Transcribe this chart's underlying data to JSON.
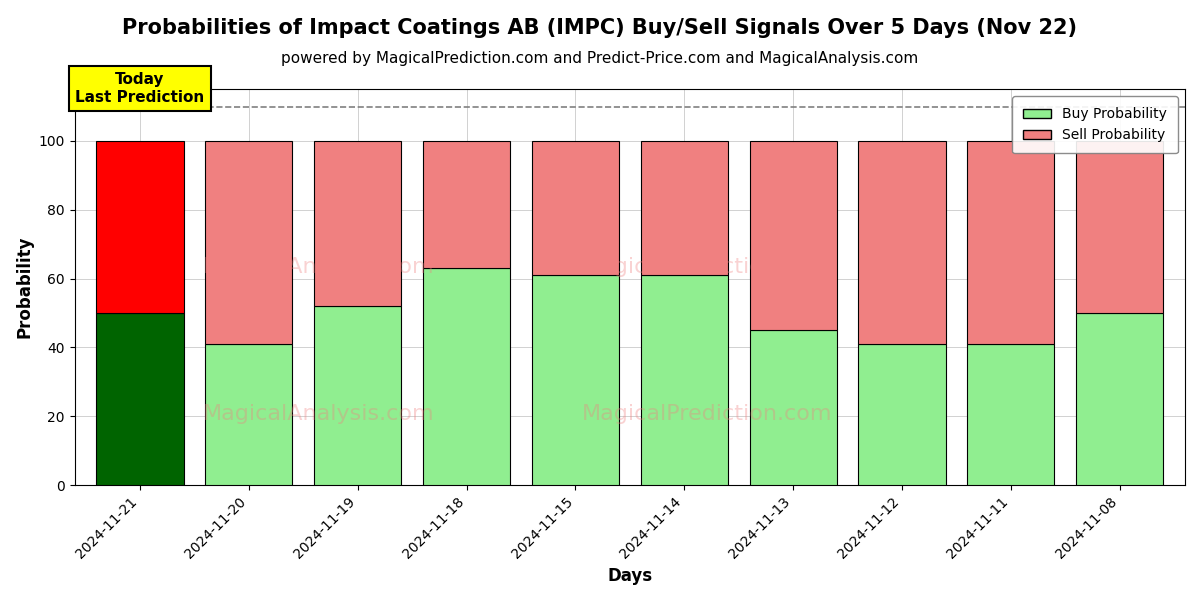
{
  "title": "Probabilities of Impact Coatings AB (IMPC) Buy/Sell Signals Over 5 Days (Nov 22)",
  "subtitle": "powered by MagicalPrediction.com and Predict-Price.com and MagicalAnalysis.com",
  "xlabel": "Days",
  "ylabel": "Probability",
  "dates": [
    "2024-11-21",
    "2024-11-20",
    "2024-11-19",
    "2024-11-18",
    "2024-11-15",
    "2024-11-14",
    "2024-11-13",
    "2024-11-12",
    "2024-11-11",
    "2024-11-08"
  ],
  "buy_values": [
    50,
    41,
    52,
    63,
    61,
    61,
    45,
    41,
    41,
    50
  ],
  "sell_values": [
    50,
    59,
    48,
    37,
    39,
    39,
    55,
    59,
    59,
    50
  ],
  "buy_colors": [
    "#006400",
    "#90EE90",
    "#90EE90",
    "#90EE90",
    "#90EE90",
    "#90EE90",
    "#90EE90",
    "#90EE90",
    "#90EE90",
    "#90EE90"
  ],
  "sell_colors": [
    "#FF0000",
    "#F08080",
    "#F08080",
    "#F08080",
    "#F08080",
    "#F08080",
    "#F08080",
    "#F08080",
    "#F08080",
    "#F08080"
  ],
  "today_label": "Today\nLast Prediction",
  "today_bg_color": "#FFFF00",
  "legend_buy_color": "#90EE90",
  "legend_sell_color": "#F08080",
  "dashed_line_y": 110,
  "ylim_max": 115,
  "yticks": [
    0,
    20,
    40,
    60,
    80,
    100
  ],
  "bar_width": 0.8,
  "edgecolor": "black",
  "grid_color": "gray",
  "background_color": "white",
  "title_fontsize": 15,
  "subtitle_fontsize": 11,
  "axis_label_fontsize": 12,
  "tick_fontsize": 10,
  "legend_fontsize": 10,
  "watermark_color": "#F08080"
}
